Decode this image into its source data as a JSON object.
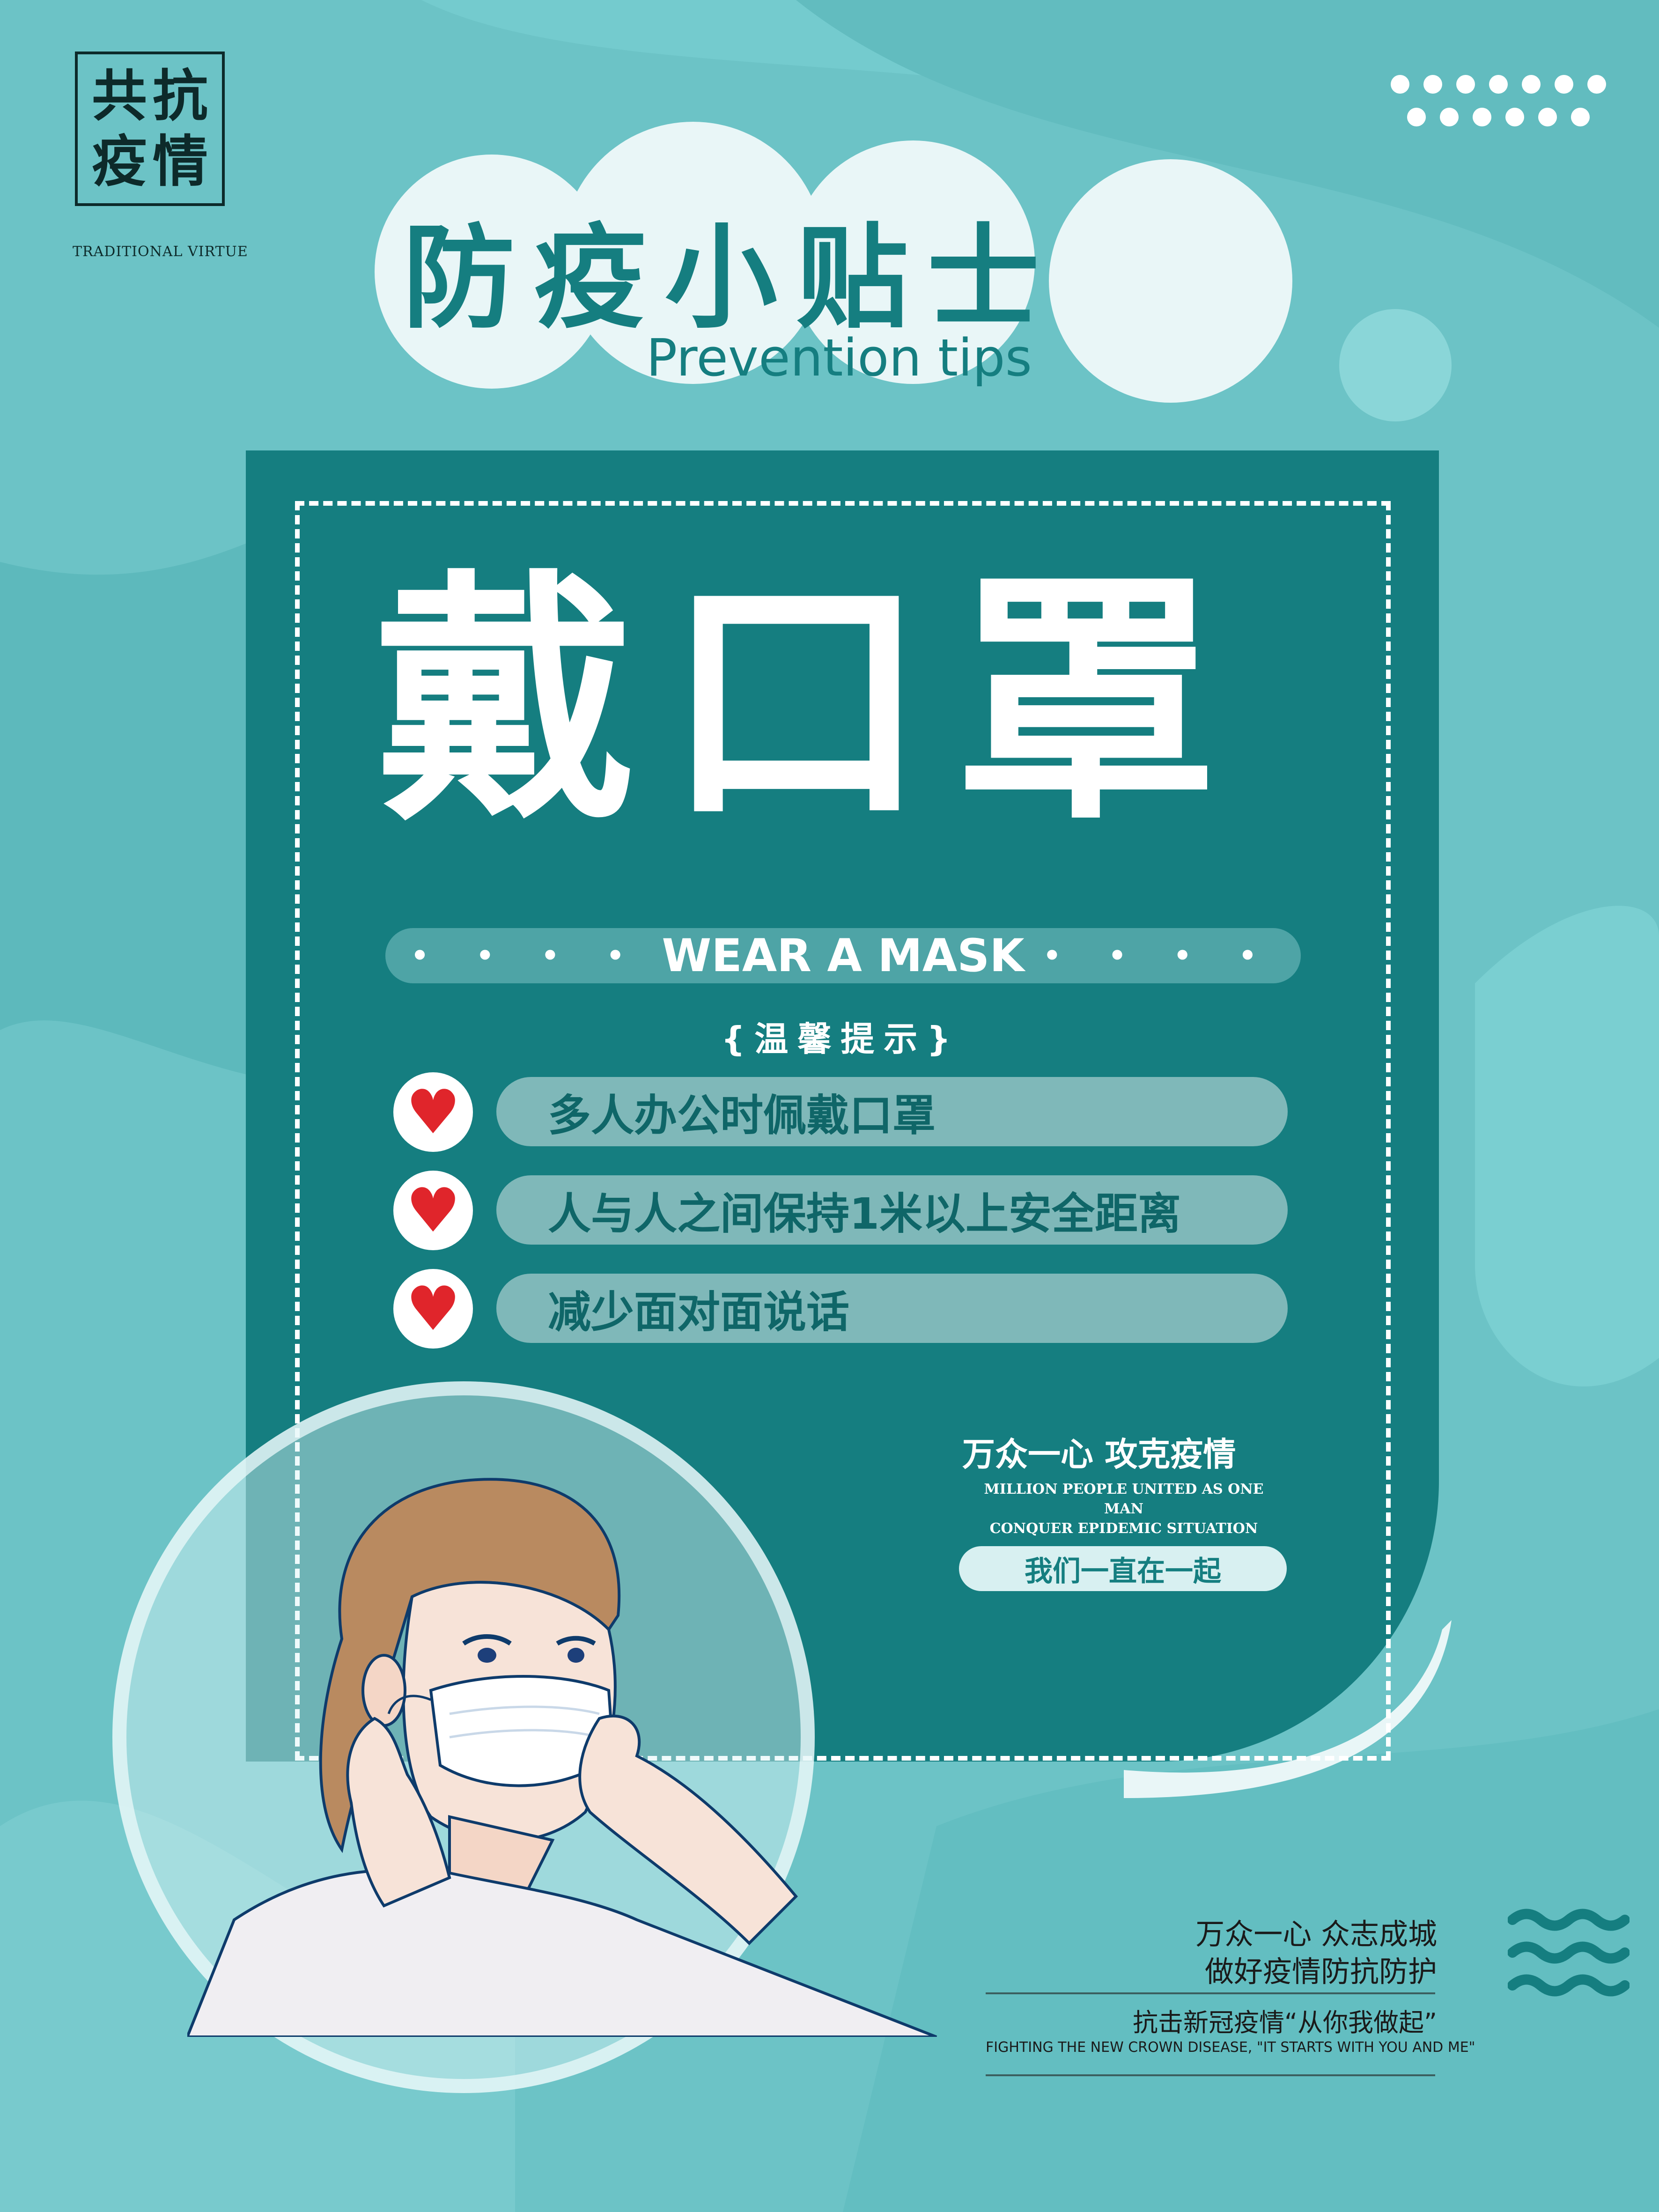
{
  "stamp": {
    "chars": [
      "共",
      "抗",
      "疫",
      "情"
    ],
    "subtitle": "TRADITIONAL VIRTUE"
  },
  "header": {
    "title_zh": "防疫小贴士",
    "title_en": "Prevention tips"
  },
  "main": {
    "big_title": "戴口罩",
    "subtitle_en": "WEAR A MASK",
    "hint_label": "{温馨提示}",
    "tips": [
      "多人办公时佩戴口罩",
      "人与人之间保持1米以上安全距离",
      "减少面对面说话"
    ],
    "slogan": "万众一心  攻克疫情",
    "slogan_en_line1": "MILLION PEOPLE UNITED AS ONE MAN",
    "slogan_en_line2": "CONQUER EPIDEMIC SITUATION",
    "slogan_pill": "我们一直在一起"
  },
  "footer": {
    "line1": "万众一心  众志成城",
    "line2": "做好疫情防抗防护",
    "line3": "抗击新冠疫情“从你我做起”",
    "line_en": "FIGHTING THE NEW CROWN DISEASE, \"IT STARTS WITH YOU AND ME\""
  },
  "colors": {
    "background": "#6cc3c6",
    "card": "#157e80",
    "heart": "#e0252b"
  }
}
